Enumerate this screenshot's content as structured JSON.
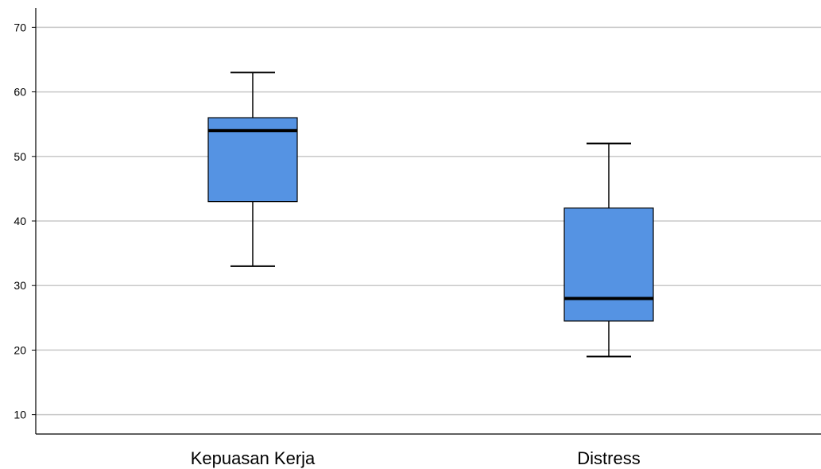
{
  "chart_data": {
    "type": "boxplot",
    "title": "",
    "xlabel": "",
    "ylabel": "",
    "ylim": [
      7,
      73
    ],
    "yticks": [
      10,
      20,
      30,
      40,
      50,
      60,
      70
    ],
    "ytick_labels": [
      "10",
      "20",
      "30",
      "40",
      "50",
      "60",
      "70"
    ],
    "grid": true,
    "categories": [
      "Kepuasan Kerja",
      "Distress"
    ],
    "boxes": [
      {
        "category": "Kepuasan Kerja",
        "min": 33,
        "q1": 43,
        "median": 54,
        "q3": 56,
        "max": 63
      },
      {
        "category": "Distress",
        "min": 19,
        "q1": 24.5,
        "median": 28,
        "q3": 42,
        "max": 52
      }
    ],
    "colors": {
      "box_fill": "#5593e3",
      "box_stroke": "#000000",
      "grid": "#c8c8c8",
      "axis": "#000000"
    }
  }
}
